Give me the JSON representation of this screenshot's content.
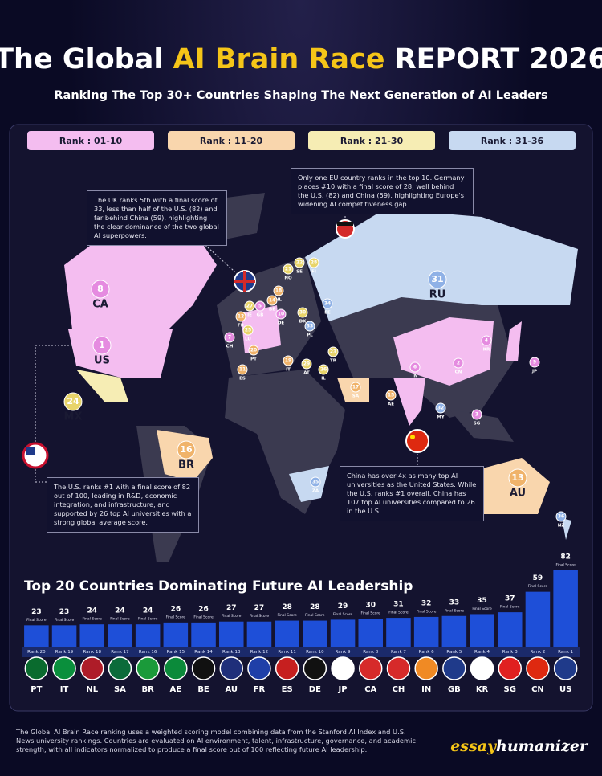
{
  "header": {
    "title": [
      "The Global",
      "AI Brain Race",
      "REPORT 2026"
    ],
    "subtitle": "Ranking The Top 30+ Countries Shaping The Next Generation of AI Leaders"
  },
  "legend": [
    {
      "label": "Rank : 01-10",
      "color": "#f4bdf0"
    },
    {
      "label": "Rank : 11-20",
      "color": "#f9d6ad"
    },
    {
      "label": "Rank : 21-30",
      "color": "#f6edb4"
    },
    {
      "label": "Rank : 31-36",
      "color": "#c7d9f1"
    }
  ],
  "map": {
    "markers": [
      {
        "rank": 8,
        "code": "CA"
      },
      {
        "rank": 1,
        "code": "US"
      },
      {
        "rank": 24,
        "code": "MX"
      },
      {
        "rank": 16,
        "code": "BR"
      },
      {
        "rank": 31,
        "code": "RU"
      },
      {
        "rank": 2,
        "code": "CN"
      },
      {
        "rank": 4,
        "code": "KR"
      },
      {
        "rank": 9,
        "code": "JP"
      },
      {
        "rank": 6,
        "code": "IN"
      },
      {
        "rank": 17,
        "code": "SA"
      },
      {
        "rank": 15,
        "code": "AE"
      },
      {
        "rank": 13,
        "code": "AU"
      },
      {
        "rank": 36,
        "code": "NZ"
      },
      {
        "rank": 35,
        "code": "ZA"
      },
      {
        "rank": 32,
        "code": "MY"
      },
      {
        "rank": 3,
        "code": "SG"
      },
      {
        "rank": 34,
        "code": "EE"
      },
      {
        "rank": 33,
        "code": "PL"
      },
      {
        "rank": 21,
        "code": "NO"
      },
      {
        "rank": 22,
        "code": "SE"
      },
      {
        "rank": 28,
        "code": "FI"
      },
      {
        "rank": 18,
        "code": "NL"
      },
      {
        "rank": 14,
        "code": "BE"
      },
      {
        "rank": 5,
        "code": "GB"
      },
      {
        "rank": 27,
        "code": "IE"
      },
      {
        "rank": 10,
        "code": "DE"
      },
      {
        "rank": 12,
        "code": "FR"
      },
      {
        "rank": 25,
        "code": "LU"
      },
      {
        "rank": 7,
        "code": "CH"
      },
      {
        "rank": 20,
        "code": "PT"
      },
      {
        "rank": 11,
        "code": "ES"
      },
      {
        "rank": 19,
        "code": "IT"
      },
      {
        "rank": 29,
        "code": "AT"
      },
      {
        "rank": 23,
        "code": "TR"
      },
      {
        "rank": 26,
        "code": "IL"
      },
      {
        "rank": 30,
        "code": "DK"
      }
    ]
  },
  "callouts": {
    "uk": "The UK ranks 5th with a final score of 33, less than half of the U.S. (82) and far behind China (59), highlighting the clear dominance of the two global AI superpowers.",
    "eu": "Only one EU country ranks in the top 10. Germany places #10 with a final score of 28, well behind the U.S. (82) and China (59), highlighting Europe's widening AI competitiveness gap.",
    "us": "The U.S. ranks #1 with a final score of 82 out of 100, leading in R&D, economic integration, and infrastructure, and supported by 26 top AI universities with a strong global average score.",
    "china": "China has over 4x as many top AI universities as the United States. While the U.S. ranks #1 overall, China has 107 top AI universities compared to 26 in the U.S."
  },
  "chart_data": {
    "type": "bar",
    "title": "Top 20 Countries Dominating Future AI Leadership",
    "categories": [
      "PT",
      "IT",
      "NL",
      "SA",
      "BR",
      "AE",
      "BE",
      "AU",
      "FR",
      "ES",
      "DE",
      "JP",
      "CA",
      "CH",
      "IN",
      "GB",
      "KR",
      "SG",
      "CN",
      "US"
    ],
    "values": [
      23,
      23,
      24,
      24,
      24,
      26,
      26,
      27,
      27,
      28,
      28,
      29,
      30,
      31,
      32,
      33,
      35,
      37,
      59,
      82
    ],
    "value_caption": "Final Score",
    "ranks": [
      "Rank 20",
      "Rank 19",
      "Rank 18",
      "Rank 17",
      "Rank 16",
      "Rank 15",
      "Rank 14",
      "Rank 13",
      "Rank 12",
      "Rank 11",
      "Rank 10",
      "Rank 9",
      "Rank 8",
      "Rank 7",
      "Rank 6",
      "Rank 5",
      "Rank 4",
      "Rank 3",
      "Rank 2",
      "Rank 1"
    ],
    "color": "#1e4fd8",
    "ylim": [
      0,
      82
    ]
  },
  "footer": "The Global AI Brain Race ranking uses a weighted scoring model combining data from the Stanford AI Index and U.S. News university rankings. Countries are evaluated on AI environment, talent, infrastructure, governance, and academic strength, with all indicators normalized to produce a final score out of 100 reflecting future AI leadership.",
  "brand": [
    "essay",
    "humanizer"
  ]
}
